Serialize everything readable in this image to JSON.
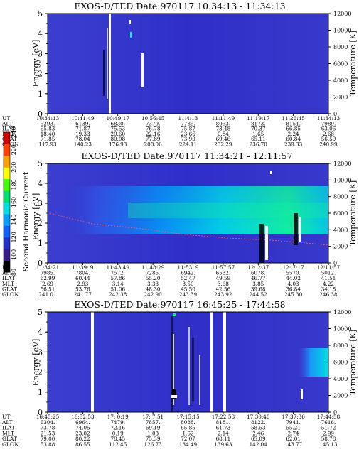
{
  "colorbar": {
    "label": "Second Harmonic Current",
    "ticks": [
      "80",
      "100",
      "120",
      "140",
      "160",
      "180",
      "200",
      "220",
      "240"
    ],
    "colors": [
      "#000000",
      "#3a1a8a",
      "#2030c8",
      "#1060ff",
      "#00a0ff",
      "#00e0e0",
      "#00e070",
      "#40ff00",
      "#ffff00",
      "#ffa000",
      "#ff4000",
      "#d00000"
    ]
  },
  "chart_data": [
    {
      "type": "heatmap",
      "title": "EXOS-D/TED   Date:970117   10:34:13 - 11:34:13",
      "ylabel": "Energy [eV]",
      "y2label": "Temperature [K]",
      "ylim": [
        0,
        5
      ],
      "y2lim": [
        0,
        12000
      ],
      "yticks": [
        "0",
        "1",
        "2",
        "3",
        "4",
        "5"
      ],
      "y2ticks": [
        "0",
        "2000",
        "4000",
        "6000",
        "8000",
        "10000",
        "12000"
      ],
      "orbit_rows": [
        {
          "label": "UT",
          "values": [
            "10:34:13",
            "10:41:49",
            "10:49:17",
            "10:56:45",
            "11:4:13",
            "11:11:49",
            "11:19:17",
            "11:26:45",
            "11:34:13"
          ]
        },
        {
          "label": "ALT",
          "values": [
            "5293.",
            "6139.",
            "6830.",
            "7379.",
            "7785.",
            "8053.",
            "8173.",
            "8151.",
            "7989."
          ]
        },
        {
          "label": "ILAT",
          "values": [
            "65.83",
            "71.87",
            "75.53",
            "76.78",
            "75.87",
            "73.48",
            "70.37",
            "66.85",
            "63.06"
          ]
        },
        {
          "label": "MLT",
          "values": [
            "18.40",
            "19.33",
            "20.60",
            "22.16",
            "23.66",
            "0.84",
            "1.65",
            "2.24",
            "2.68"
          ]
        },
        {
          "label": "GLAT",
          "values": [
            "71.85",
            "78.04",
            "80.08",
            "77.89",
            "73.90",
            "69.46",
            "65.11",
            "60.84",
            "56.59"
          ]
        },
        {
          "label": "GLON",
          "values": [
            "117.93",
            "140.23",
            "176.93",
            "208.06",
            "224.11",
            "232.29",
            "236.70",
            "239.33",
            "240.99"
          ]
        }
      ]
    },
    {
      "type": "heatmap",
      "title": "EXOS-D/TED   Date:970117   11:34:21 - 12:11:57",
      "ylabel": "Energy [eV]",
      "y2label": "Temperature [K]",
      "ylim": [
        0,
        5
      ],
      "y2lim": [
        0,
        12000
      ],
      "yticks": [
        "0",
        "1",
        "2",
        "3",
        "4",
        "5"
      ],
      "y2ticks": [
        "0",
        "2000",
        "4000",
        "6000",
        "8000",
        "10000",
        "12000"
      ],
      "orbit_rows": [
        {
          "label": "UT",
          "values": [
            "11:34:21",
            "11:39: 9",
            "11:43:49",
            "11:48:29",
            "11:53: 9",
            "11:57:57",
            "12: 2:37",
            "12: 7:17",
            "12:11:57"
          ]
        },
        {
          "label": "ALT",
          "values": [
            "7985.",
            "7804.",
            "7572.",
            "7285.",
            "6942.",
            "6532.",
            "6078.",
            "5570.",
            "5012."
          ]
        },
        {
          "label": "ILAT",
          "values": [
            "62.99",
            "60.44",
            "57.86",
            "55.20",
            "52.47",
            "49.59",
            "46.77",
            "44.02",
            "41.51"
          ]
        },
        {
          "label": "MLT",
          "values": [
            "2.69",
            "2.93",
            "3.14",
            "3.33",
            "3.50",
            "3.68",
            "3.85",
            "4.03",
            "4.22"
          ]
        },
        {
          "label": "GLAT",
          "values": [
            "56.51",
            "53.76",
            "51.06",
            "48.30",
            "45.50",
            "42.56",
            "39.68",
            "36.84",
            "34.18"
          ]
        },
        {
          "label": "GLON",
          "values": [
            "241.01",
            "241.77",
            "242.38",
            "242.90",
            "243.39",
            "243.92",
            "244.52",
            "245.30",
            "246.38"
          ]
        }
      ]
    },
    {
      "type": "heatmap",
      "title": "EXOS-D/TED   Date:970117   16:45:25 - 17:44:58",
      "ylabel": "Energy [eV]",
      "y2label": "Temperature [K]",
      "ylim": [
        0,
        5
      ],
      "y2lim": [
        0,
        12000
      ],
      "yticks": [
        "0",
        "1",
        "2",
        "3",
        "4",
        "5"
      ],
      "y2ticks": [
        "0",
        "2000",
        "4000",
        "6000",
        "8000",
        "10000",
        "12000"
      ],
      "orbit_rows": [
        {
          "label": "UT",
          "values": [
            "16:45:25",
            "16:52:53",
            "17: 0:19",
            "17: 7:51",
            "17:15:15",
            "17:22:58",
            "17:30:40",
            "17:37:36",
            "17:44:58"
          ]
        },
        {
          "label": "ALT",
          "values": [
            "6304.",
            "6964.",
            "7479.",
            "7857.",
            "8088.",
            "8181.",
            "8122.",
            "7941.",
            "7616."
          ]
        },
        {
          "label": "ILAT",
          "values": [
            "73.78",
            "74.05",
            "72.16",
            "69.19",
            "65.85",
            "61.73",
            "58.53",
            "55.21",
            "51.72"
          ]
        },
        {
          "label": "MLT",
          "values": [
            "21.53",
            "23.02",
            "0.19",
            "1.03",
            "1.62",
            "2.14",
            "2.46",
            "2.74",
            "2.99"
          ]
        },
        {
          "label": "GLAT",
          "values": [
            "79.00",
            "80.22",
            "78.45",
            "75.39",
            "72.07",
            "68.11",
            "65.09",
            "62.01",
            "58.78"
          ]
        },
        {
          "label": "GLON",
          "values": [
            "53.88",
            "86.55",
            "112.45",
            "126.73",
            "134.49",
            "139.63",
            "142.04",
            "143.77",
            "145.13"
          ]
        }
      ]
    }
  ]
}
